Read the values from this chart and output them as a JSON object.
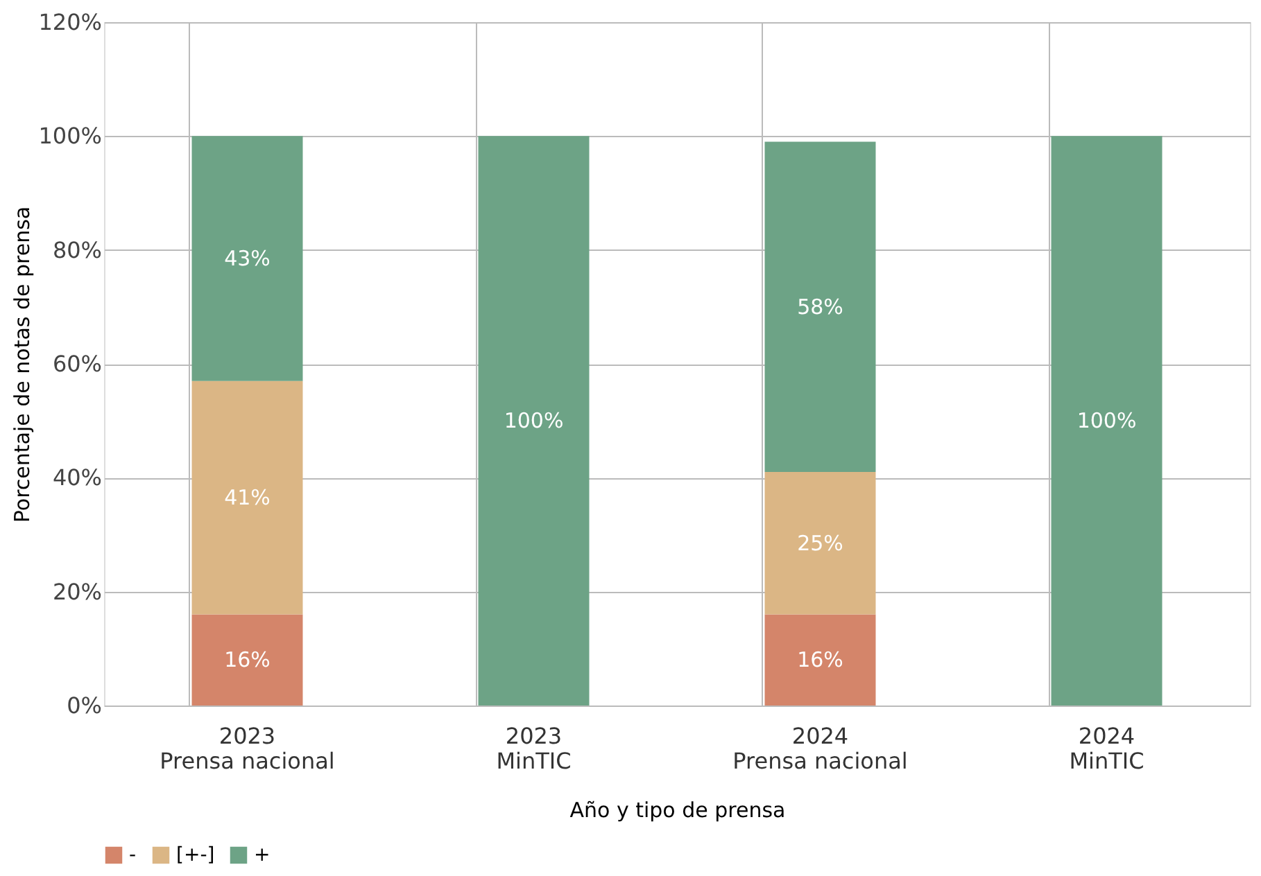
{
  "chart_data": {
    "type": "bar",
    "stacked": true,
    "xlabel": "Año y tipo de prensa",
    "ylabel": "Porcentaje de notas de prensa",
    "categories": [
      "2023\nPrensa nacional",
      "2023\nMinTIC",
      "2024\nPrensa nacional",
      "2024\nMinTIC"
    ],
    "series": [
      {
        "name": "-",
        "color": "#d4856a",
        "values": [
          16,
          null,
          16,
          null
        ],
        "value_labels": [
          "16%",
          null,
          "16%",
          null
        ]
      },
      {
        "name": "[+-]",
        "color": "#dbb685",
        "values": [
          41,
          null,
          25,
          null
        ],
        "value_labels": [
          "41%",
          null,
          "25%",
          null
        ]
      },
      {
        "name": "+",
        "color": "#6da386",
        "values": [
          43,
          100,
          58,
          100
        ],
        "value_labels": [
          "43%",
          "100%",
          "58%",
          "100%"
        ]
      }
    ],
    "ylim": [
      0,
      120
    ],
    "yticks": [
      {
        "value": 0,
        "label": "0%"
      },
      {
        "value": 20,
        "label": "20%"
      },
      {
        "value": 40,
        "label": "40%"
      },
      {
        "value": 60,
        "label": "60%"
      },
      {
        "value": 80,
        "label": "80%"
      },
      {
        "value": 100,
        "label": "100%"
      },
      {
        "value": 120,
        "label": "120%"
      }
    ],
    "grid": true,
    "legend": "bottom"
  }
}
